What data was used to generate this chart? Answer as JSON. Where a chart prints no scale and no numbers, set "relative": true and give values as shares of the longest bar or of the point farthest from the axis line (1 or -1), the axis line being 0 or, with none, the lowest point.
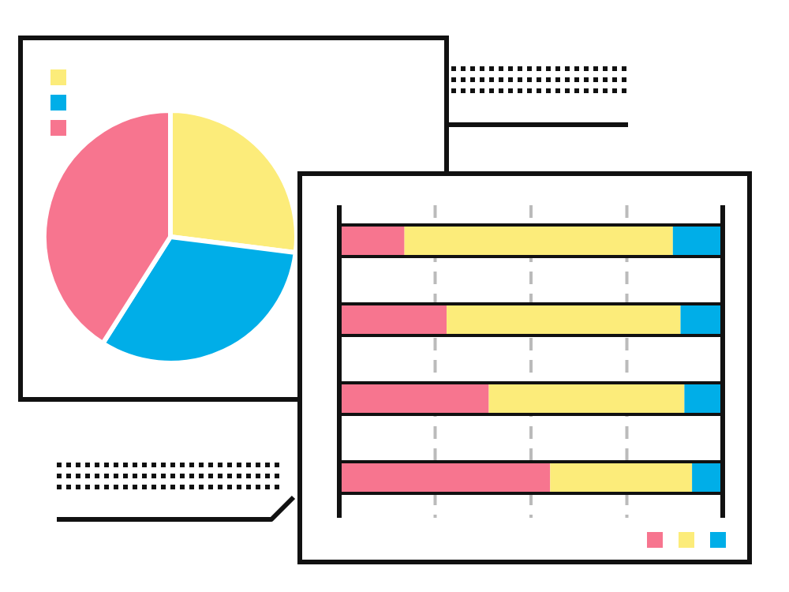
{
  "chart_data": [
    {
      "type": "pie",
      "categories": [
        null,
        null,
        null
      ],
      "values": [
        27,
        32,
        41
      ],
      "colors": [
        "#fcec7a",
        "#00aee8",
        "#f7758f"
      ]
    },
    {
      "type": "bar",
      "orientation": "horizontal",
      "stacked": true,
      "relative": true,
      "categories": [
        null,
        null,
        null,
        null
      ],
      "grid": "x",
      "series": [
        {
          "color": "#f7758f",
          "values": [
            0.17,
            0.28,
            0.39,
            0.55
          ]
        },
        {
          "color": "#fcec7a",
          "values": [
            0.7,
            0.61,
            0.51,
            0.37
          ]
        },
        {
          "color": "#00aee8",
          "values": [
            0.13,
            0.11,
            0.1,
            0.08
          ]
        }
      ]
    }
  ]
}
